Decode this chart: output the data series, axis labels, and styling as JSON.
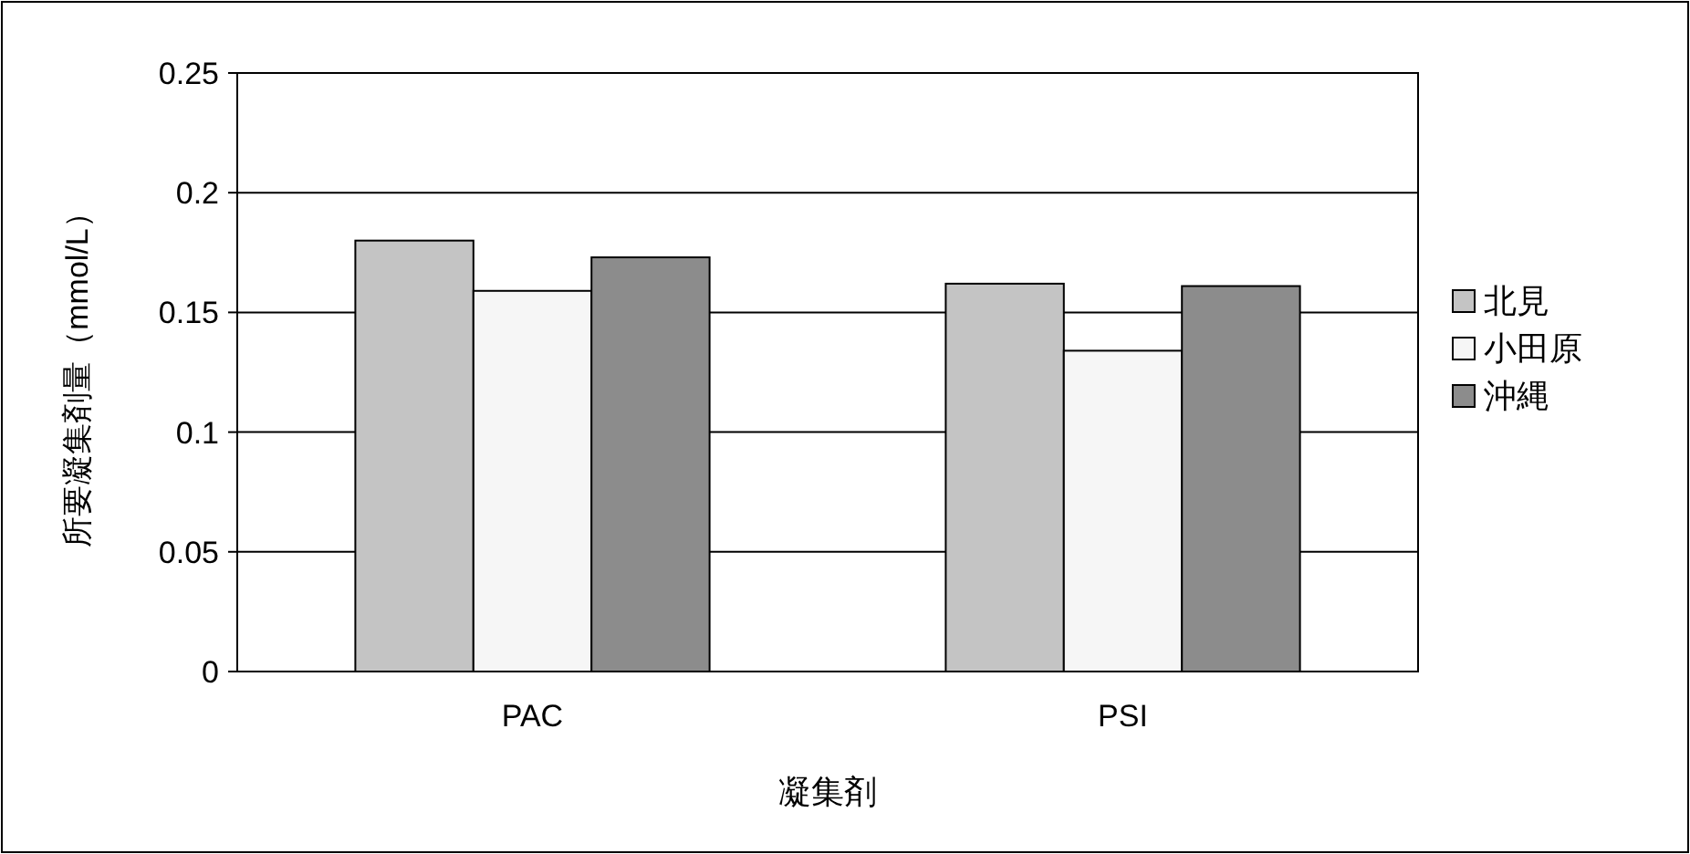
{
  "chart_data": {
    "type": "bar",
    "xlabel": "凝集剤",
    "ylabel": "所要凝集剤量（mmol/L）",
    "categories": [
      "PAC",
      "PSI"
    ],
    "series": [
      {
        "name": "北見",
        "color": "#c4c4c4",
        "values": [
          0.18,
          0.162
        ]
      },
      {
        "name": "小田原",
        "color": "#f6f6f6",
        "values": [
          0.159,
          0.134
        ]
      },
      {
        "name": "沖縄",
        "color": "#8c8c8c",
        "values": [
          0.173,
          0.161
        ]
      }
    ],
    "ylim": [
      0,
      0.25
    ],
    "yticks": [
      0,
      0.05,
      0.1,
      0.15,
      0.2,
      0.25
    ],
    "grid": "y",
    "legend": "right"
  }
}
